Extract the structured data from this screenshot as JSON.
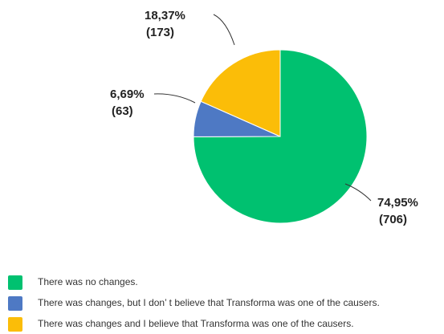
{
  "chart_data": {
    "type": "pie",
    "categories": [
      "There was no changes.",
      "There was changes, but I don’ t believe that Transforma was one of the causers.",
      "There was changes and I believe that Transforma was one of the causers."
    ],
    "values": [
      74.95,
      6.69,
      18.37
    ],
    "value_labels": [
      "74,95%",
      "6,69%",
      "18,37%"
    ],
    "counts": [
      706,
      63,
      173
    ],
    "count_labels": [
      "(706)",
      "(63)",
      "(173)"
    ],
    "colors": [
      "#00c170",
      "#4e79c4",
      "#fbbd08"
    ]
  }
}
